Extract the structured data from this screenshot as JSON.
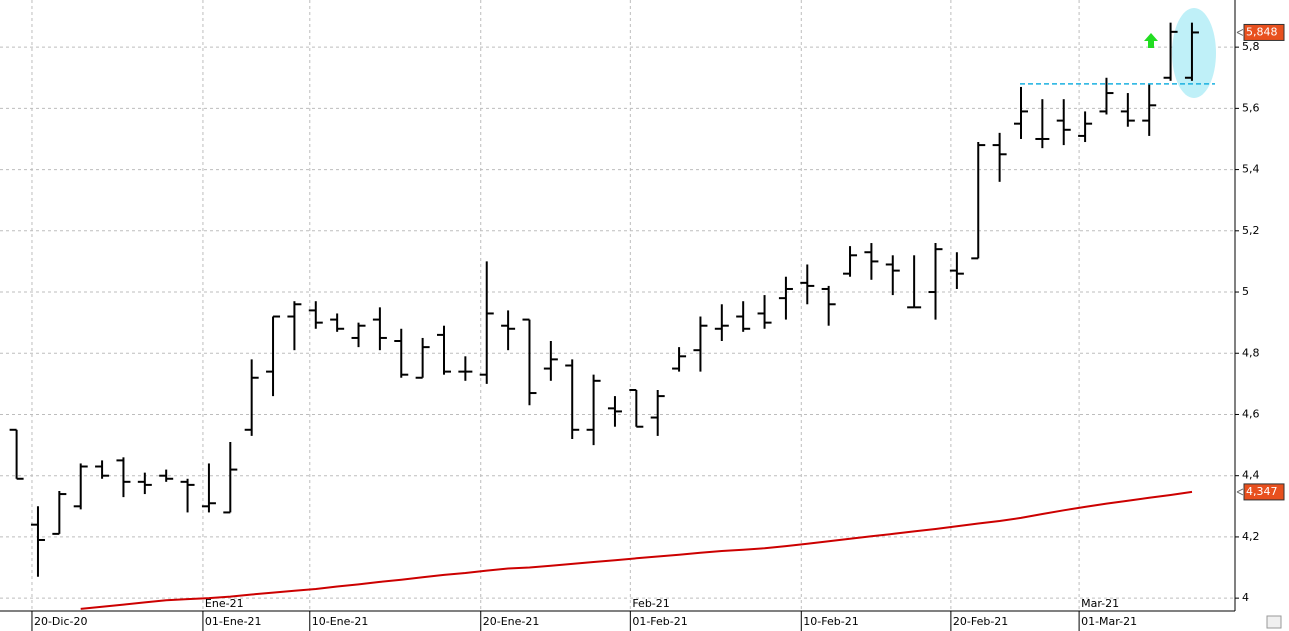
{
  "chart_data": {
    "type": "ohlc",
    "categories": [
      null,
      "20-Dic-20",
      null,
      null,
      null,
      null,
      null,
      null,
      null,
      "01-Ene-21",
      null,
      null,
      null,
      null,
      "10-Ene-21",
      null,
      null,
      null,
      null,
      null,
      null,
      null,
      "20-Ene-21",
      null,
      null,
      null,
      null,
      null,
      null,
      "01-Feb-21",
      null,
      null,
      null,
      null,
      null,
      null,
      null,
      "10-Feb-21",
      null,
      null,
      null,
      null,
      null,
      null,
      "20-Feb-21",
      null,
      null,
      null,
      null,
      null,
      "01-Mar-21",
      null,
      null,
      null,
      null,
      null
    ],
    "months": [
      null,
      null,
      null,
      null,
      null,
      null,
      null,
      null,
      null,
      "Ene-21",
      null,
      null,
      null,
      null,
      null,
      null,
      null,
      null,
      null,
      null,
      null,
      null,
      null,
      null,
      null,
      null,
      null,
      null,
      null,
      "Feb-21",
      null,
      null,
      null,
      null,
      null,
      null,
      null,
      null,
      null,
      null,
      null,
      null,
      null,
      null,
      null,
      null,
      null,
      null,
      null,
      null,
      "Mar-21",
      null,
      null,
      null,
      null,
      null
    ],
    "open": [
      4.55,
      4.24,
      4.21,
      4.3,
      4.43,
      4.45,
      4.38,
      4.4,
      4.38,
      4.3,
      4.28,
      4.55,
      4.74,
      4.92,
      4.94,
      4.91,
      4.85,
      4.91,
      4.84,
      4.72,
      4.86,
      4.74,
      4.73,
      4.89,
      4.91,
      4.75,
      4.76,
      4.55,
      4.62,
      4.68,
      4.59,
      4.75,
      4.81,
      4.88,
      4.92,
      4.93,
      4.98,
      5.03,
      5.01,
      5.06,
      5.13,
      5.09,
      4.95,
      5.0,
      5.07,
      5.11,
      5.48,
      5.55,
      5.5,
      5.56,
      5.51,
      5.59,
      5.59,
      5.56,
      5.7,
      5.7
    ],
    "high": [
      4.55,
      4.3,
      4.35,
      4.44,
      4.45,
      4.46,
      4.41,
      4.42,
      4.39,
      4.44,
      4.51,
      4.78,
      4.92,
      4.97,
      4.97,
      4.93,
      4.9,
      4.95,
      4.88,
      4.85,
      4.89,
      4.79,
      5.1,
      4.94,
      4.91,
      4.84,
      4.78,
      4.73,
      4.66,
      4.68,
      4.68,
      4.82,
      4.92,
      4.96,
      4.97,
      4.99,
      5.05,
      5.09,
      5.02,
      5.15,
      5.16,
      5.12,
      5.12,
      5.16,
      5.13,
      5.49,
      5.52,
      5.67,
      5.63,
      5.63,
      5.59,
      5.7,
      5.65,
      5.68,
      5.88,
      5.88
    ],
    "low": [
      4.39,
      4.07,
      4.21,
      4.29,
      4.39,
      4.33,
      4.34,
      4.38,
      4.28,
      4.28,
      4.28,
      4.53,
      4.66,
      4.81,
      4.88,
      4.87,
      4.82,
      4.81,
      4.72,
      4.72,
      4.73,
      4.71,
      4.7,
      4.81,
      4.63,
      4.71,
      4.52,
      4.5,
      4.56,
      4.56,
      4.53,
      4.74,
      4.74,
      4.84,
      4.87,
      4.88,
      4.91,
      4.96,
      4.89,
      5.05,
      5.04,
      4.99,
      4.95,
      4.91,
      5.01,
      5.11,
      5.36,
      5.5,
      5.47,
      5.48,
      5.49,
      5.58,
      5.54,
      5.51,
      5.69,
      5.69
    ],
    "close": [
      4.39,
      4.19,
      4.34,
      4.43,
      4.4,
      4.38,
      4.37,
      4.39,
      4.37,
      4.31,
      4.42,
      4.72,
      4.92,
      4.96,
      4.9,
      4.88,
      4.89,
      4.85,
      4.73,
      4.82,
      4.74,
      4.74,
      4.93,
      4.88,
      4.67,
      4.78,
      4.55,
      4.71,
      4.61,
      4.56,
      4.66,
      4.79,
      4.89,
      4.89,
      4.88,
      4.9,
      5.01,
      5.02,
      4.96,
      5.12,
      5.1,
      5.07,
      4.95,
      5.14,
      5.06,
      5.48,
      5.45,
      5.59,
      5.5,
      5.53,
      5.55,
      5.65,
      5.56,
      5.61,
      5.85,
      5.848
    ],
    "color": "#000000",
    "moving_average": {
      "color": "#cc0000",
      "values": [
        null,
        null,
        null,
        3.965,
        3.972,
        3.979,
        3.986,
        3.993,
        3.997,
        4.0,
        4.005,
        4.012,
        4.018,
        4.024,
        4.03,
        4.038,
        4.045,
        4.053,
        4.06,
        4.068,
        4.076,
        4.082,
        4.09,
        4.097,
        4.1,
        4.106,
        4.112,
        4.118,
        4.124,
        4.13,
        4.136,
        4.142,
        4.148,
        4.154,
        4.158,
        4.163,
        4.17,
        4.178,
        4.186,
        4.194,
        4.202,
        4.21,
        4.218,
        4.226,
        4.235,
        4.244,
        4.252,
        4.262,
        4.275,
        4.287,
        4.298,
        4.309,
        4.318,
        4.328,
        4.337,
        4.347
      ]
    },
    "price_labels": [
      {
        "value": 5.848,
        "label": "5,848",
        "color": "#e8501e"
      },
      {
        "value": 4.347,
        "label": "4,347",
        "color": "#e8501e"
      }
    ],
    "resistance": {
      "value": 5.68,
      "color": "#1ab0e0"
    },
    "ylim": [
      3.958,
      5.954
    ],
    "yticks": [
      4,
      {
        "value": 4.2,
        "label": "4,2"
      },
      {
        "value": 4.4,
        "label": "4,4"
      },
      {
        "value": 4.6,
        "label": "4,6"
      },
      {
        "value": 4.8,
        "label": "4,8"
      },
      5,
      {
        "value": 5.2,
        "label": "5,2"
      },
      {
        "value": 5.4,
        "label": "5,4"
      },
      {
        "value": 5.6,
        "label": "5,6"
      },
      {
        "value": 5.8,
        "label": "5,8"
      }
    ],
    "grid": true
  }
}
